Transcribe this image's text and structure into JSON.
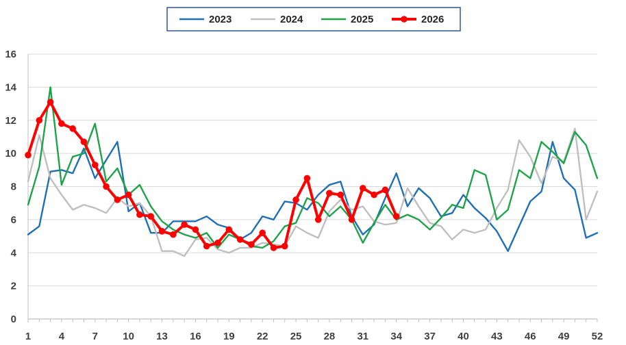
{
  "chart_data": {
    "type": "line",
    "title": "",
    "xlabel": "",
    "ylabel": "",
    "xlim": [
      1,
      52
    ],
    "ylim": [
      0,
      16
    ],
    "grid": true,
    "legend_position": "top-center",
    "x_ticks": [
      1,
      4,
      7,
      10,
      13,
      16,
      19,
      22,
      25,
      28,
      31,
      34,
      37,
      40,
      43,
      46,
      49,
      52
    ],
    "y_ticks": [
      0,
      2,
      4,
      6,
      8,
      10,
      12,
      14,
      16
    ],
    "series": [
      {
        "name": "2023",
        "color": "#1F6FB5",
        "markers": false,
        "values": [
          5.1,
          5.6,
          8.9,
          9.0,
          8.8,
          10.3,
          8.5,
          9.6,
          10.7,
          6.5,
          7.0,
          5.2,
          5.2,
          5.9,
          5.9,
          5.9,
          6.2,
          5.7,
          5.5,
          4.8,
          5.2,
          6.2,
          6.0,
          7.1,
          7.0,
          6.6,
          7.5,
          8.1,
          8.3,
          6.2,
          5.1,
          5.7,
          7.3,
          8.8,
          6.8,
          7.9,
          7.3,
          6.2,
          6.4,
          7.5,
          6.7,
          6.1,
          5.3,
          4.1,
          5.6,
          7.1,
          7.7,
          10.7,
          8.5,
          7.8,
          4.9,
          5.2
        ]
      },
      {
        "name": "2024",
        "color": "#BFBFBF",
        "markers": false,
        "values": [
          8.3,
          11.1,
          8.5,
          7.5,
          6.6,
          6.9,
          6.7,
          6.4,
          7.3,
          6.8,
          7.0,
          6.2,
          4.1,
          4.1,
          3.8,
          4.8,
          4.9,
          4.2,
          4.0,
          4.3,
          4.3,
          4.6,
          4.5,
          4.4,
          5.6,
          5.2,
          4.9,
          6.5,
          7.2,
          6.6,
          6.8,
          5.9,
          5.7,
          5.8,
          7.9,
          6.8,
          5.8,
          5.6,
          4.8,
          5.4,
          5.2,
          5.4,
          6.7,
          7.8,
          10.8,
          9.8,
          8.2,
          9.8,
          9.5,
          11.5,
          6.0,
          7.7
        ]
      },
      {
        "name": "2025",
        "color": "#1FA24A",
        "markers": false,
        "values": [
          6.9,
          9.2,
          14.0,
          8.1,
          9.8,
          10.0,
          11.8,
          8.3,
          9.1,
          7.5,
          8.1,
          6.8,
          5.9,
          5.4,
          5.1,
          4.9,
          5.2,
          4.3,
          5.1,
          4.8,
          4.4,
          4.3,
          4.7,
          5.6,
          5.8,
          7.3,
          7.0,
          6.2,
          6.8,
          6.0,
          4.6,
          5.8,
          6.9,
          6.0,
          6.3,
          6.0,
          5.4,
          6.1,
          6.9,
          6.7,
          9.0,
          8.7,
          6.0,
          6.6,
          9.0,
          8.5,
          10.7,
          10.1,
          9.4,
          11.3,
          10.5,
          8.5
        ]
      },
      {
        "name": "2026",
        "color": "#FF0000",
        "markers": true,
        "values": [
          9.9,
          12.0,
          13.1,
          11.8,
          11.5,
          10.7,
          9.3,
          8.0,
          7.2,
          7.5,
          6.3,
          6.2,
          5.3,
          5.1,
          5.7,
          5.4,
          4.4,
          4.6,
          5.4,
          4.8,
          4.5,
          5.2,
          4.3,
          4.4,
          7.2,
          8.5,
          6.0,
          7.6,
          7.5,
          6.0,
          7.9,
          7.5,
          7.8,
          6.2
        ]
      }
    ]
  }
}
